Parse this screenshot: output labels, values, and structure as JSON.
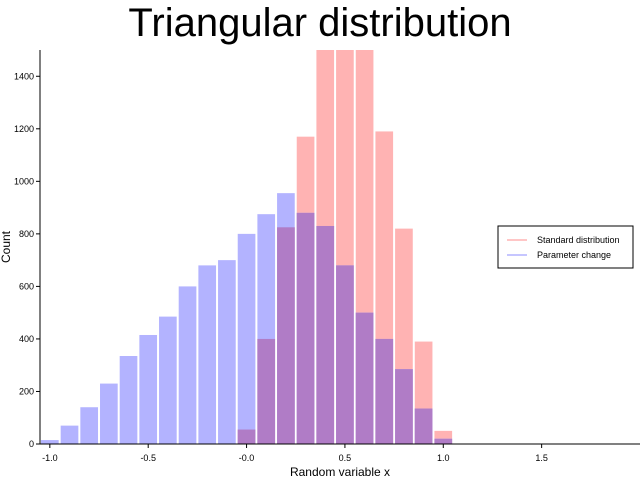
{
  "chart_data": {
    "type": "bar",
    "title": "Triangular distribution",
    "xlabel": "Random variable x",
    "ylabel": "Count",
    "xlim": [
      -1.05,
      2.0
    ],
    "ylim": [
      0,
      1500
    ],
    "xticks": [
      -1.0,
      -0.5,
      -0.0,
      0.5,
      1.0,
      1.5
    ],
    "xtick_labels": [
      "-1.0",
      "-0.5",
      "-0.0",
      "0.5",
      "1.0",
      "1.5"
    ],
    "yticks": [
      0,
      200,
      400,
      600,
      800,
      1000,
      1200,
      1400
    ],
    "ytick_labels": [
      "0",
      "200",
      "400",
      "600",
      "800",
      "1000",
      "1200",
      "1400"
    ],
    "bin_width": 0.1,
    "grid": false,
    "legend_position": "right",
    "series": [
      {
        "name": "Standard distribution",
        "color": "#ffb3b3",
        "bin_centers": [
          0.0,
          0.1,
          0.2,
          0.3,
          0.4,
          0.5,
          0.6,
          0.7,
          0.8,
          0.9,
          1.0
        ],
        "values": [
          55,
          400,
          825,
          1170,
          1500,
          1500,
          1500,
          1190,
          820,
          390,
          50
        ]
      },
      {
        "name": "Parameter change",
        "color": "#b3b3ff",
        "bin_centers": [
          -1.0,
          -0.9,
          -0.8,
          -0.7,
          -0.6,
          -0.5,
          -0.4,
          -0.3,
          -0.2,
          -0.1,
          0.0,
          0.1,
          0.2,
          0.3,
          0.4,
          0.5,
          0.6,
          0.7,
          0.8,
          0.9,
          1.0
        ],
        "values": [
          15,
          70,
          140,
          230,
          335,
          415,
          485,
          600,
          680,
          700,
          800,
          875,
          955,
          880,
          830,
          680,
          500,
          400,
          285,
          135,
          20
        ]
      }
    ],
    "overlap_color": "#b07cc6"
  }
}
